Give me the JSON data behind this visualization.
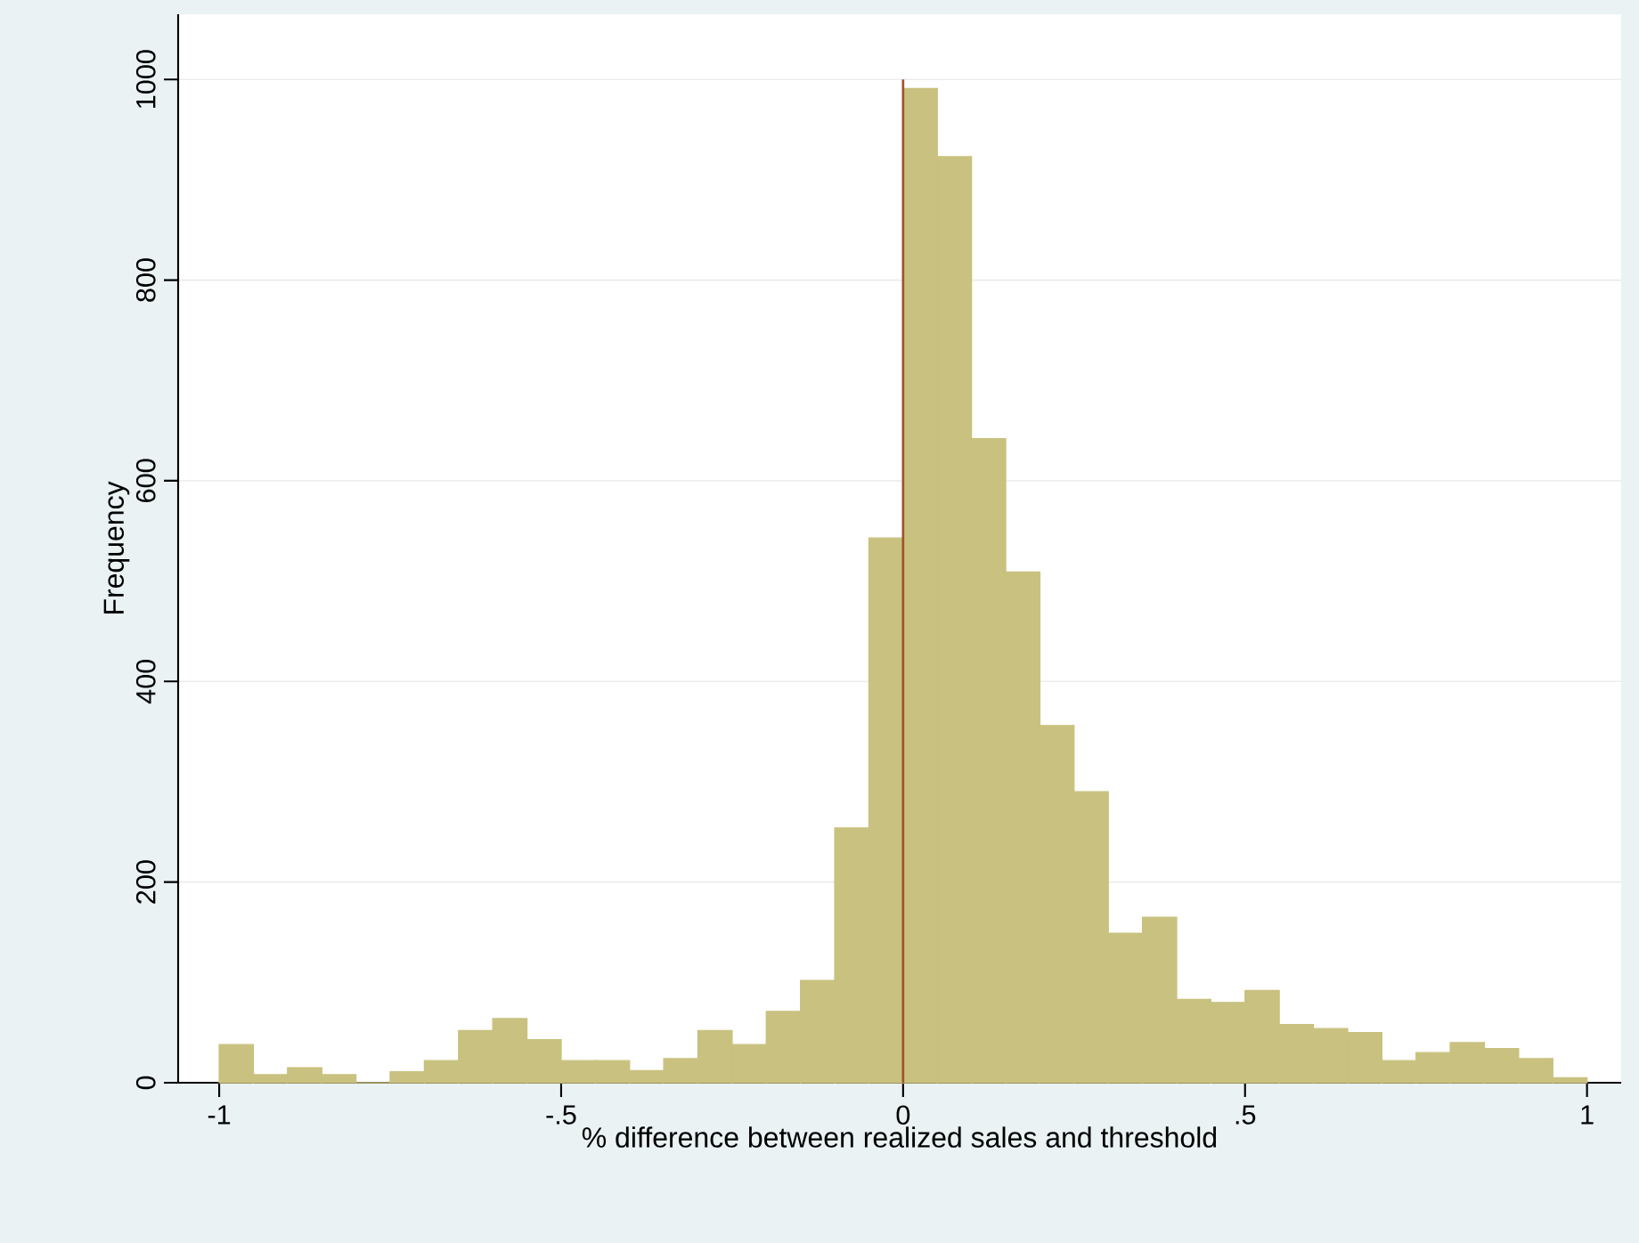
{
  "chart_data": {
    "type": "histogram",
    "xlabel": "% difference between realized sales and threshold",
    "ylabel": "Frequency",
    "bins": [
      -1,
      -0.95,
      -0.9,
      -0.85,
      -0.8,
      -0.75,
      -0.7,
      -0.65,
      -0.6,
      -0.55,
      -0.5,
      -0.45,
      -0.4,
      -0.35,
      -0.3,
      -0.25,
      -0.2,
      -0.15,
      -0.1,
      -0.05,
      0,
      0.05,
      0.1,
      0.15,
      0.2,
      0.25,
      0.3,
      0.35,
      0.4,
      0.45,
      0.5,
      0.55,
      0.6,
      0.65,
      0.7,
      0.75,
      0.8,
      0.85,
      0.9,
      0.95,
      1
    ],
    "values": [
      38,
      8,
      15,
      8,
      0,
      11,
      22,
      52,
      64,
      43,
      22,
      22,
      12,
      24,
      52,
      38,
      71,
      102,
      254,
      543,
      991,
      923,
      642,
      509,
      356,
      290,
      149,
      165,
      83,
      80,
      92,
      58,
      54,
      50,
      22,
      30,
      40,
      34,
      24,
      5
    ],
    "color": "#c9c17f",
    "xlim": [
      -1.06,
      1.05
    ],
    "ylim": [
      0,
      1065
    ],
    "xticks": [
      {
        "value": -1,
        "label": "-1"
      },
      {
        "value": -0.5,
        "label": "-.5"
      },
      0,
      {
        "value": 0.5,
        "label": ".5"
      },
      1
    ],
    "yticks": [
      0,
      200,
      400,
      600,
      800,
      1000
    ],
    "grid": "y",
    "ref_lines": [
      {
        "axis": "x",
        "value": 0,
        "color": "#a0522d"
      }
    ]
  }
}
